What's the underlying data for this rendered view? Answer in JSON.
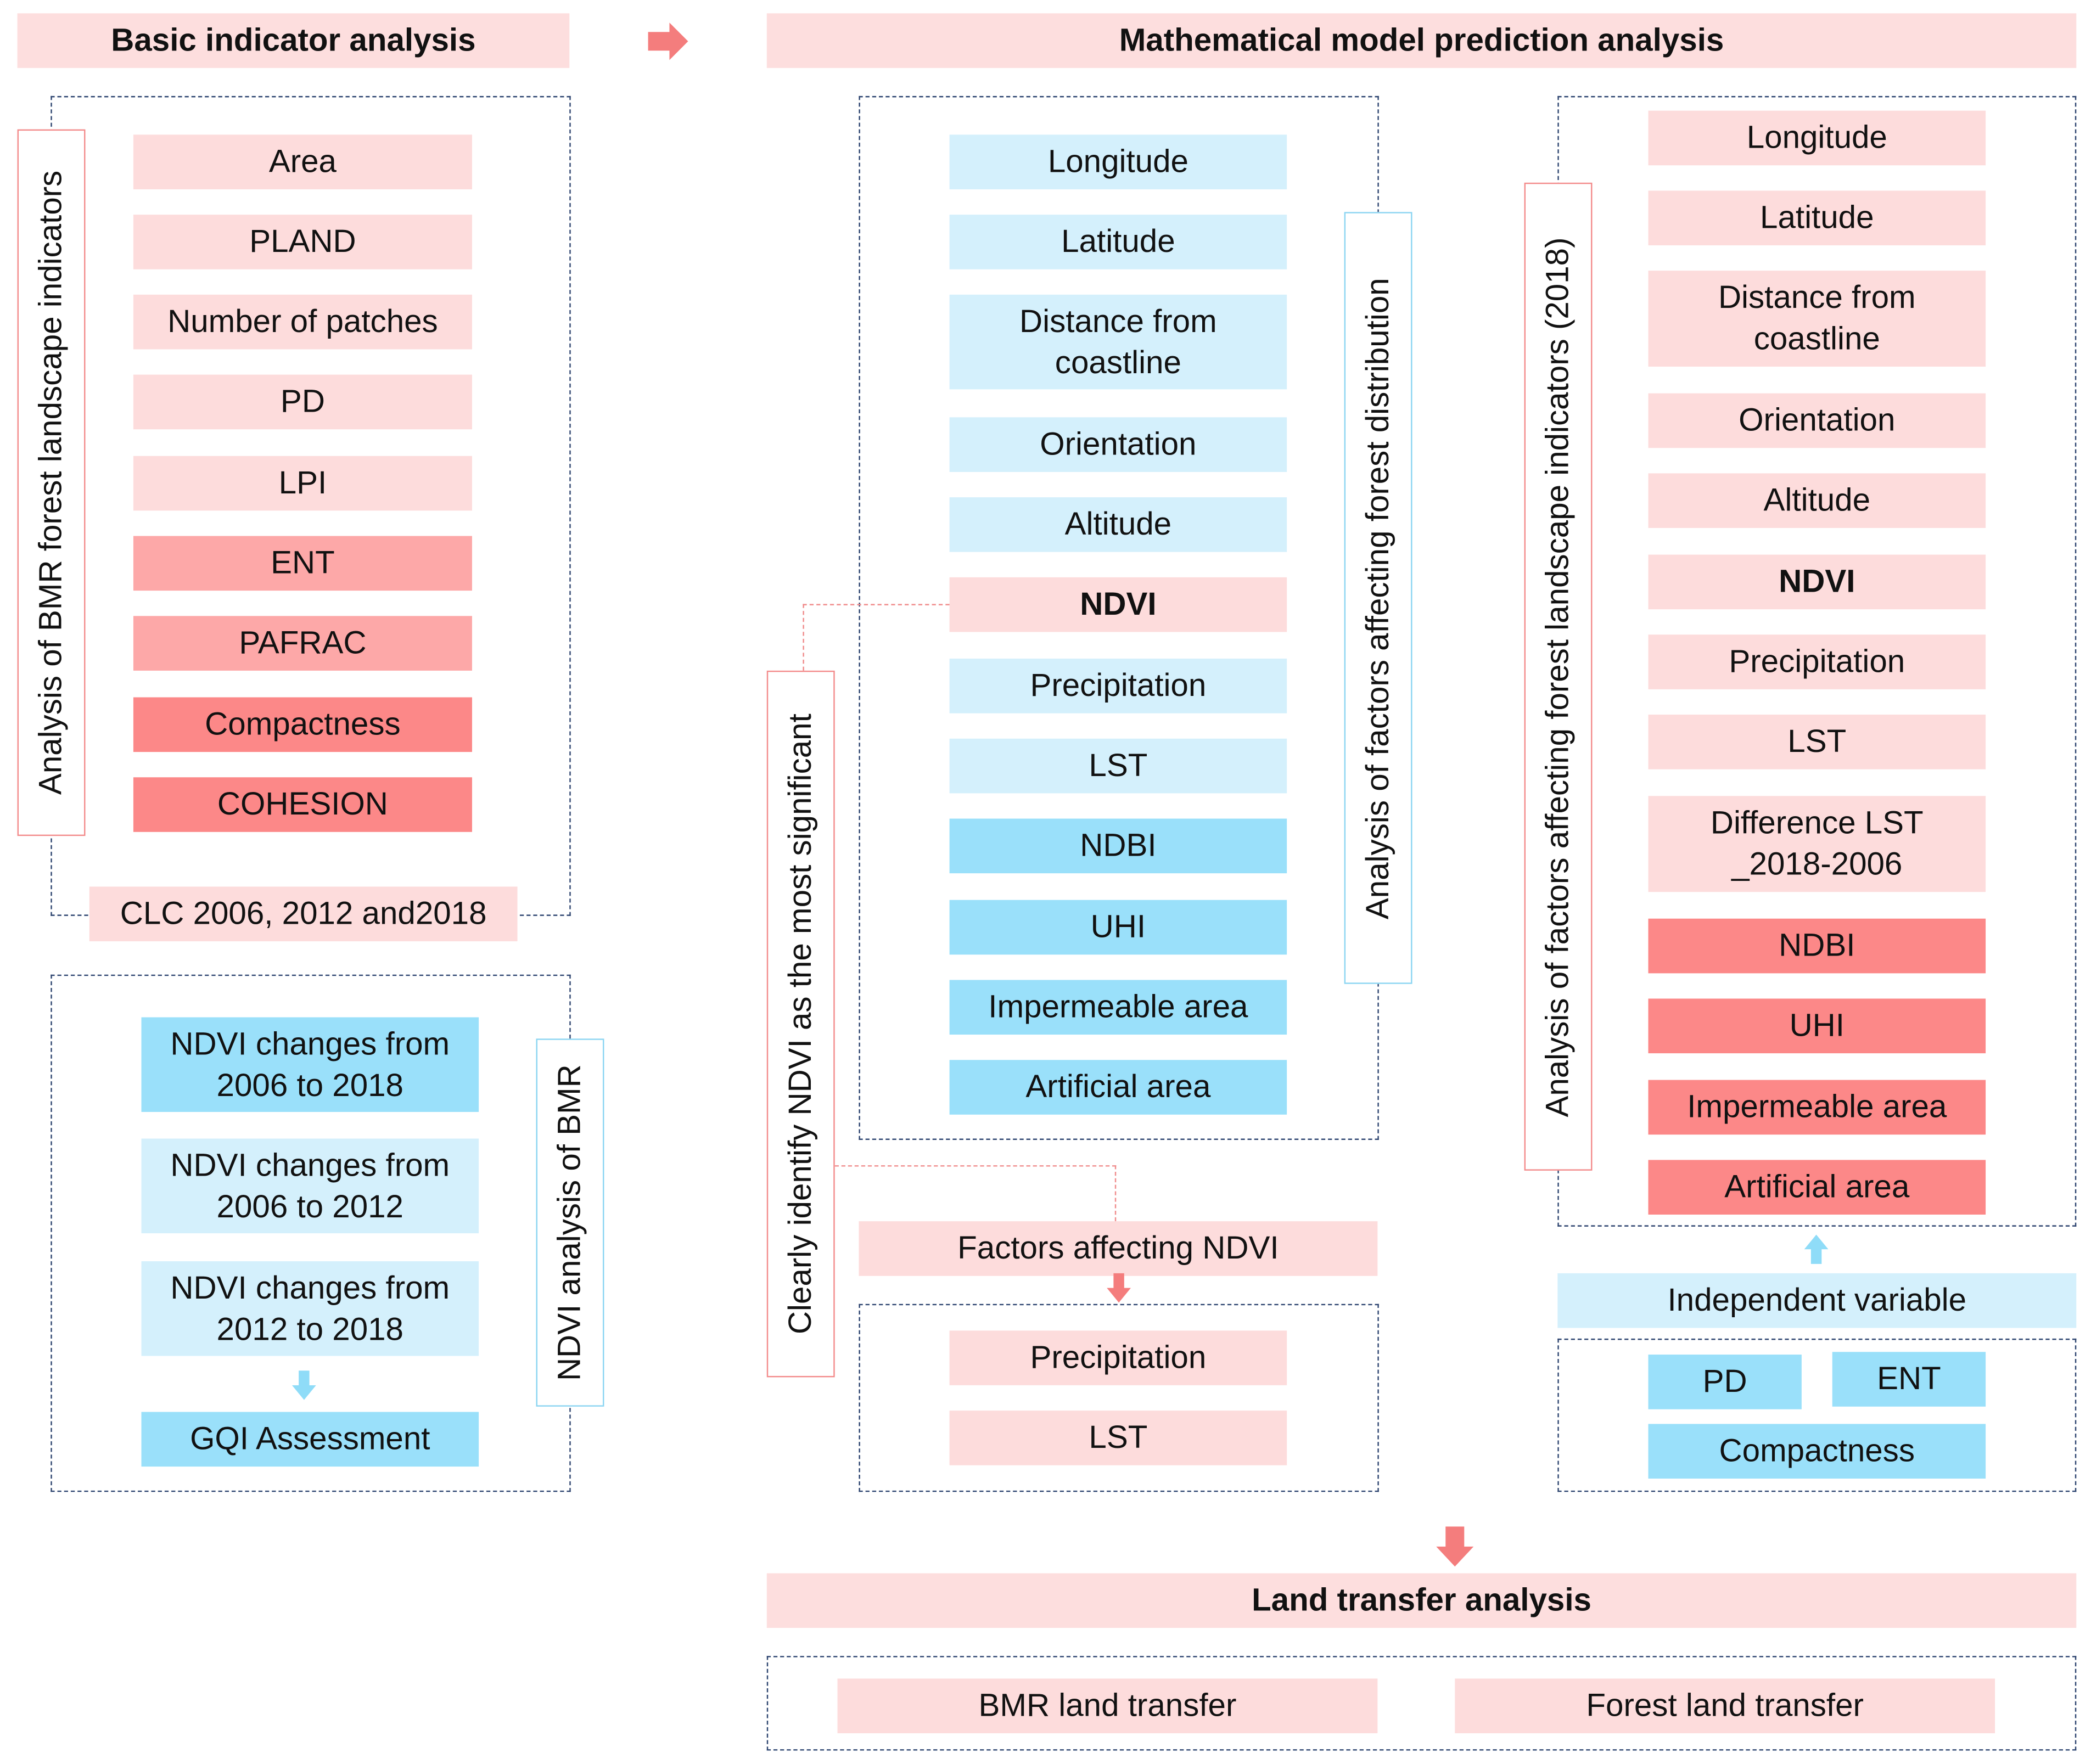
{
  "headers": {
    "basic": "Basic indicator analysis",
    "math": "Mathematical model prediction analysis",
    "land": "Land transfer analysis"
  },
  "left_panel": {
    "side_label": "Analysis of BMR forest landscape indicators",
    "items": [
      "Area",
      "PLAND",
      "Number of patches",
      "PD",
      "LPI",
      "ENT",
      "PAFRAC",
      "Compactness",
      "COHESION"
    ],
    "clc": "CLC 2006, 2012 and2018"
  },
  "ndvi_panel": {
    "side_label": "NDVI analysis of BMR",
    "items": [
      "NDVI changes from\n2006 to 2018",
      "NDVI changes from\n2006 to 2012",
      "NDVI changes from\n2012 to 2018"
    ],
    "gqi": "GQI Assessment"
  },
  "middle_panel": {
    "side_label": "Analysis of factors affecting forest distribution",
    "items": [
      "Longitude",
      "Latitude",
      "Distance from\ncoastline",
      "Orientation",
      "Altitude",
      "NDVI",
      "Precipitation",
      "LST",
      "NDBI",
      "UHI",
      "Impermeable area",
      "Artificial area"
    ],
    "identify_label": "Clearly identify NDVI as the most significant",
    "factors_title": "Factors affecting NDVI",
    "factors": [
      "Precipitation",
      "LST"
    ]
  },
  "right_panel": {
    "side_label": "Analysis of factors affecting forest landscape indicators (2018)",
    "items": [
      "Longitude",
      "Latitude",
      "Distance from\ncoastline",
      "Orientation",
      "Altitude",
      "NDVI",
      "Precipitation",
      "LST",
      "Difference LST\n_2018-2006",
      "NDBI",
      "UHI",
      "Impermeable area",
      "Artificial area"
    ],
    "independent_title": "Independent variable",
    "independent": [
      "PD",
      "ENT",
      "Compactness"
    ]
  },
  "land_panel": {
    "items": [
      "BMR land transfer",
      "Forest land transfer"
    ]
  },
  "colors": {
    "header_pink": "#fddede",
    "pink_light": "#fddcdc",
    "pink_mid": "#fda8a8",
    "pink_dark": "#fc8888",
    "blue_light": "#d4f0fc",
    "blue_dark": "#9ae0fa",
    "dash_border": "#2e4570",
    "arrow_pink": "#f47d7d",
    "arrow_blue": "#8fdcf8"
  }
}
